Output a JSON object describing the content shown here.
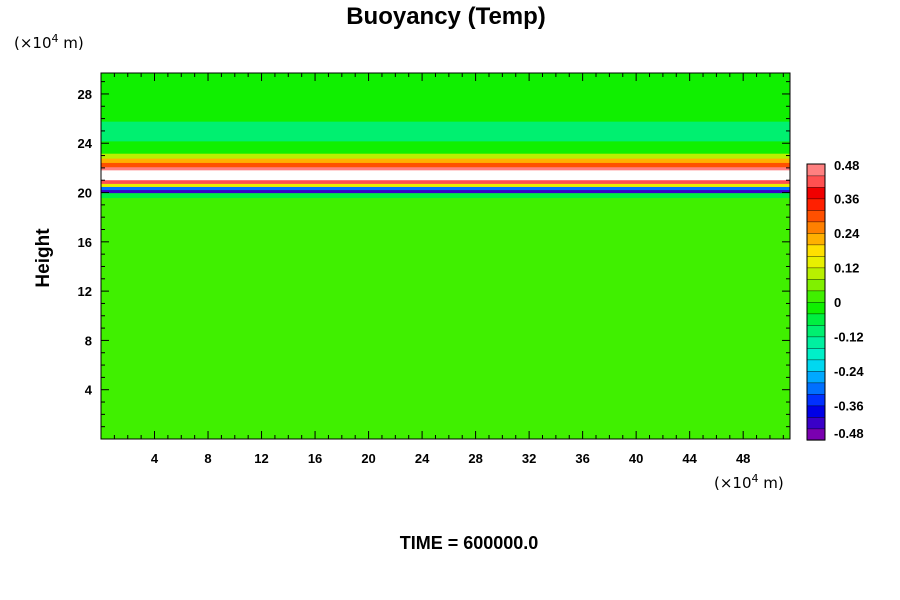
{
  "chart_data": {
    "type": "heatmap",
    "title": "Buoyancy (Temp)",
    "ylabel": "Height",
    "y_unit": {
      "prefix": "(×10",
      "exp": "4",
      "suffix": " m)"
    },
    "x_unit": {
      "prefix": "(×10",
      "exp": "4",
      "suffix": " m)"
    },
    "xlim": [
      0,
      51.5
    ],
    "ylim": [
      0,
      29.7
    ],
    "x_ticks": [
      "4",
      "8",
      "12",
      "16",
      "20",
      "24",
      "28",
      "32",
      "36",
      "40",
      "44",
      "48"
    ],
    "x_tick_values": [
      4,
      8,
      12,
      16,
      20,
      24,
      28,
      32,
      36,
      40,
      44,
      48
    ],
    "y_ticks": [
      "4",
      "8",
      "12",
      "16",
      "20",
      "24",
      "28"
    ],
    "y_tick_values": [
      4,
      8,
      12,
      16,
      20,
      24,
      28
    ],
    "colorbar": {
      "range": [
        -0.48,
        0.48
      ],
      "tick_labels": [
        "0.48",
        "0.36",
        "0.24",
        "0.12",
        "0",
        "-0.12",
        "-0.24",
        "-0.36",
        "-0.48"
      ],
      "tick_values": [
        0.48,
        0.36,
        0.24,
        0.12,
        0,
        -0.12,
        -0.24,
        -0.36,
        -0.48
      ],
      "colors": [
        "#7a00b0",
        "#3a00c8",
        "#0000e6",
        "#0030ff",
        "#0070ff",
        "#00a8ff",
        "#00d8f0",
        "#00f0c8",
        "#00f0a0",
        "#00f070",
        "#00f040",
        "#10f000",
        "#40f000",
        "#80f000",
        "#b8f000",
        "#e8f000",
        "#ffe000",
        "#ffb000",
        "#ff8000",
        "#ff5000",
        "#ff2000",
        "#f00000",
        "#ff5050",
        "#ff8080"
      ]
    },
    "field_bands": [
      {
        "y0": 0.0,
        "y1": 19.6,
        "value": 0.0
      },
      {
        "y0": 19.6,
        "y1": 20.0,
        "value": -0.05
      },
      {
        "y0": 20.0,
        "y1": 20.25,
        "value": -0.42
      },
      {
        "y0": 20.25,
        "y1": 20.5,
        "value": -0.3
      },
      {
        "y0": 20.5,
        "y1": 20.75,
        "value": 0.12
      },
      {
        "y0": 20.75,
        "y1": 21.05,
        "value": 0.4
      },
      {
        "y0": 21.05,
        "y1": 21.85,
        "value": 0.6
      },
      {
        "y0": 21.85,
        "y1": 22.1,
        "value": 0.44
      },
      {
        "y0": 22.1,
        "y1": 22.45,
        "value": 0.3
      },
      {
        "y0": 22.45,
        "y1": 22.8,
        "value": 0.2
      },
      {
        "y0": 22.8,
        "y1": 23.2,
        "value": 0.1
      },
      {
        "y0": 23.2,
        "y1": 24.2,
        "value": -0.04
      },
      {
        "y0": 24.2,
        "y1": 25.8,
        "value": -0.09
      },
      {
        "y0": 25.8,
        "y1": 29.7,
        "value": -0.04
      }
    ],
    "time_label": "TIME = 600000.0"
  }
}
